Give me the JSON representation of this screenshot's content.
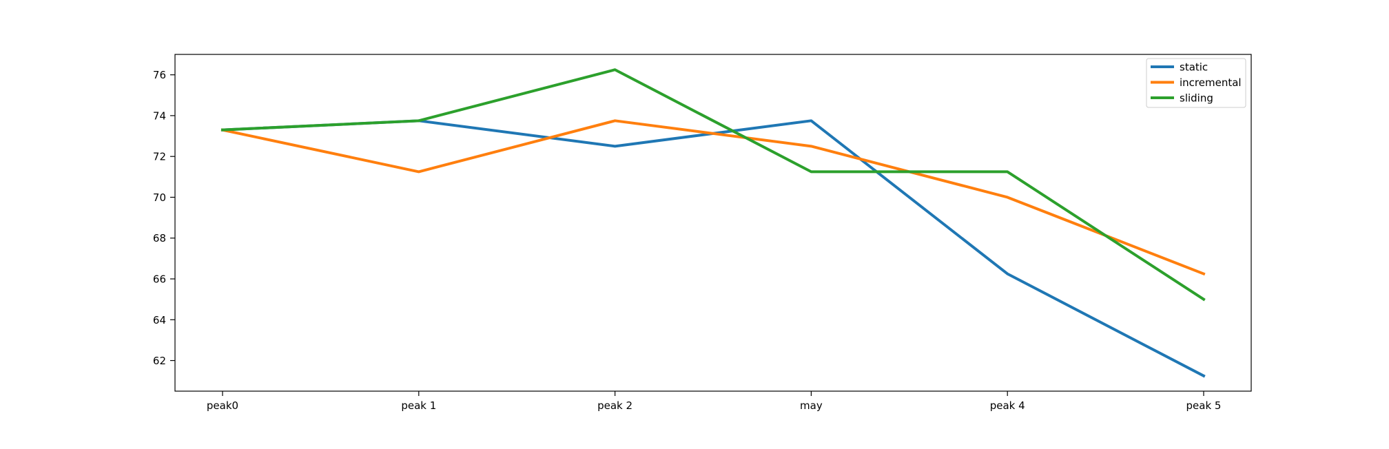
{
  "chart_data": {
    "type": "line",
    "categories": [
      "peak0",
      "peak 1",
      "peak 2",
      "may",
      "peak 4",
      "peak 5"
    ],
    "series": [
      {
        "name": "static",
        "color": "#1f77b4",
        "values": [
          73.3,
          73.75,
          72.5,
          73.75,
          66.25,
          61.25
        ]
      },
      {
        "name": "incremental",
        "color": "#ff7f0e",
        "values": [
          73.3,
          71.25,
          73.75,
          72.5,
          70.0,
          66.25
        ]
      },
      {
        "name": "sliding",
        "color": "#2ca02c",
        "values": [
          73.3,
          73.75,
          76.25,
          71.25,
          71.25,
          65.0
        ]
      }
    ],
    "y_ticks": [
      62,
      64,
      66,
      68,
      70,
      72,
      74,
      76
    ],
    "ylim": [
      60.5,
      77.0
    ],
    "title": "",
    "xlabel": "",
    "ylabel": "",
    "grid": false,
    "legend_position": "upper right"
  }
}
